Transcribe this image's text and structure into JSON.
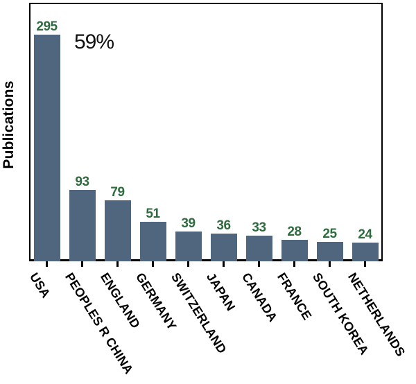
{
  "chart_data": {
    "type": "bar",
    "title": "",
    "xlabel": "",
    "ylabel": "Publications",
    "categories": [
      "USA",
      "PEOPLES R CHINA",
      "ENGLAND",
      "GERMANY",
      "SWITZERLAND",
      "JAPAN",
      "CANADA",
      "FRANCE",
      "SOUTH KOREA",
      "NETHERLANDS"
    ],
    "values": [
      295,
      93,
      79,
      51,
      39,
      36,
      33,
      28,
      25,
      24
    ],
    "annotation": "59%",
    "ylim": [
      0,
      336
    ],
    "grid": false,
    "legend": false,
    "colors": {
      "bar": "#50667e",
      "value_label": "#2e6b3e",
      "axis": "#000000",
      "annotation_text": "#111111",
      "background": "#ffffff"
    }
  }
}
